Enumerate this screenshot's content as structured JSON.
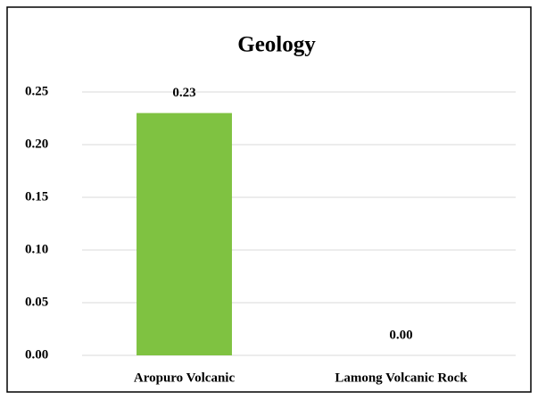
{
  "chart_data": {
    "type": "bar",
    "title": "Geology",
    "categories": [
      "Aropuro Volcanic",
      "Lamong Volcanic Rock"
    ],
    "values": [
      0.23,
      0
    ],
    "value_labels": [
      "0.23",
      "0.00"
    ],
    "color": "#7fc241",
    "ylim": [
      0,
      0.25
    ],
    "yticks": [
      {
        "value": 0,
        "label": "0.00"
      },
      0.05,
      {
        "value": 0.1,
        "label": "0.10"
      },
      0.15,
      {
        "value": 0.2,
        "label": "0.20"
      },
      0.25
    ],
    "grid": true
  }
}
